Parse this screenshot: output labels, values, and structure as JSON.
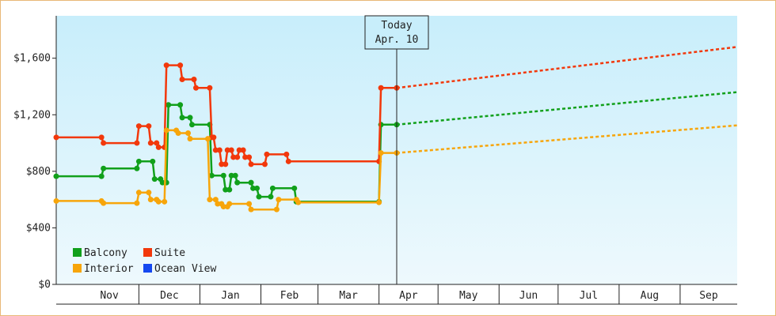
{
  "chart_data": {
    "type": "line",
    "title": "",
    "xlabel": "",
    "ylabel": "",
    "ylim": [
      0,
      1900
    ],
    "y_ticks": [
      {
        "value": 0,
        "label": "$0"
      },
      {
        "value": 400,
        "label": "$400"
      },
      {
        "value": 800,
        "label": "$800"
      },
      {
        "value": 1200,
        "label": "$1,200"
      },
      {
        "value": 1600,
        "label": "$1,600"
      }
    ],
    "x_range": [
      "2023-10-20",
      "2024-09-30"
    ],
    "month_ticks": [
      {
        "label": "Nov",
        "start": "2023-11-01",
        "end": "2023-12-01"
      },
      {
        "label": "Dec",
        "start": "2023-12-01",
        "end": "2024-01-01"
      },
      {
        "label": "Jan",
        "start": "2024-01-01",
        "end": "2024-02-01"
      },
      {
        "label": "Feb",
        "start": "2024-02-01",
        "end": "2024-03-01"
      },
      {
        "label": "Mar",
        "start": "2024-03-01",
        "end": "2024-04-01"
      },
      {
        "label": "Apr",
        "start": "2024-04-01",
        "end": "2024-05-01"
      },
      {
        "label": "May",
        "start": "2024-05-01",
        "end": "2024-06-01"
      },
      {
        "label": "Jun",
        "start": "2024-06-01",
        "end": "2024-07-01"
      },
      {
        "label": "Jul",
        "start": "2024-07-01",
        "end": "2024-08-01"
      },
      {
        "label": "Aug",
        "start": "2024-08-01",
        "end": "2024-09-01"
      },
      {
        "label": "Sep",
        "start": "2024-09-01",
        "end": "2024-09-30"
      }
    ],
    "today": {
      "line1": "Today",
      "line2": "Apr. 10",
      "date": "2024-04-10"
    },
    "legend_position": "bottom-left",
    "grid": false,
    "series": [
      {
        "name": "Balcony",
        "color": "#11a01b",
        "points": [
          [
            "2023-10-20",
            765
          ],
          [
            "2023-11-12",
            765
          ],
          [
            "2023-11-13",
            820
          ],
          [
            "2023-11-30",
            820
          ],
          [
            "2023-12-01",
            870
          ],
          [
            "2023-12-08",
            870
          ],
          [
            "2023-12-09",
            745
          ],
          [
            "2023-12-12",
            745
          ],
          [
            "2023-12-13",
            720
          ],
          [
            "2023-12-15",
            720
          ],
          [
            "2023-12-16",
            1270
          ],
          [
            "2023-12-22",
            1270
          ],
          [
            "2023-12-23",
            1180
          ],
          [
            "2023-12-27",
            1180
          ],
          [
            "2023-12-28",
            1130
          ],
          [
            "2024-01-06",
            1130
          ],
          [
            "2024-01-07",
            770
          ],
          [
            "2024-01-13",
            770
          ],
          [
            "2024-01-14",
            670
          ],
          [
            "2024-01-16",
            670
          ],
          [
            "2024-01-17",
            770
          ],
          [
            "2024-01-19",
            770
          ],
          [
            "2024-01-20",
            720
          ],
          [
            "2024-01-27",
            720
          ],
          [
            "2024-01-28",
            680
          ],
          [
            "2024-01-30",
            680
          ],
          [
            "2024-01-31",
            620
          ],
          [
            "2024-02-06",
            620
          ],
          [
            "2024-02-07",
            680
          ],
          [
            "2024-02-18",
            680
          ],
          [
            "2024-02-19",
            585
          ],
          [
            "2024-04-01",
            585
          ],
          [
            "2024-04-02",
            1130
          ],
          [
            "2024-04-10",
            1130
          ]
        ],
        "forecast": [
          [
            "2024-04-10",
            1130
          ],
          [
            "2024-09-30",
            1360
          ]
        ]
      },
      {
        "name": "Suite",
        "color": "#f2380b",
        "points": [
          [
            "2023-10-20",
            1040
          ],
          [
            "2023-11-12",
            1040
          ],
          [
            "2023-11-13",
            1000
          ],
          [
            "2023-11-30",
            1000
          ],
          [
            "2023-12-01",
            1120
          ],
          [
            "2023-12-06",
            1120
          ],
          [
            "2023-12-07",
            1000
          ],
          [
            "2023-12-10",
            1000
          ],
          [
            "2023-12-11",
            970
          ],
          [
            "2023-12-14",
            970
          ],
          [
            "2023-12-15",
            1550
          ],
          [
            "2023-12-22",
            1550
          ],
          [
            "2023-12-23",
            1450
          ],
          [
            "2023-12-29",
            1450
          ],
          [
            "2023-12-30",
            1390
          ],
          [
            "2024-01-06",
            1390
          ],
          [
            "2024-01-07",
            1040
          ],
          [
            "2024-01-08",
            1040
          ],
          [
            "2024-01-09",
            950
          ],
          [
            "2024-01-11",
            950
          ],
          [
            "2024-01-12",
            850
          ],
          [
            "2024-01-14",
            850
          ],
          [
            "2024-01-15",
            950
          ],
          [
            "2024-01-17",
            950
          ],
          [
            "2024-01-18",
            900
          ],
          [
            "2024-01-20",
            900
          ],
          [
            "2024-01-21",
            950
          ],
          [
            "2024-01-23",
            950
          ],
          [
            "2024-01-24",
            900
          ],
          [
            "2024-01-26",
            900
          ],
          [
            "2024-01-27",
            850
          ],
          [
            "2024-02-03",
            850
          ],
          [
            "2024-02-04",
            920
          ],
          [
            "2024-02-14",
            920
          ],
          [
            "2024-02-15",
            870
          ],
          [
            "2024-04-01",
            870
          ],
          [
            "2024-04-02",
            1390
          ],
          [
            "2024-04-10",
            1390
          ]
        ],
        "forecast": [
          [
            "2024-04-10",
            1390
          ],
          [
            "2024-09-30",
            1680
          ]
        ]
      },
      {
        "name": "Interior",
        "color": "#f7a50a",
        "points": [
          [
            "2023-10-20",
            590
          ],
          [
            "2023-11-12",
            590
          ],
          [
            "2023-11-13",
            575
          ],
          [
            "2023-11-30",
            575
          ],
          [
            "2023-12-01",
            650
          ],
          [
            "2023-12-06",
            650
          ],
          [
            "2023-12-07",
            600
          ],
          [
            "2023-12-10",
            600
          ],
          [
            "2023-12-11",
            585
          ],
          [
            "2023-12-14",
            585
          ],
          [
            "2023-12-15",
            1090
          ],
          [
            "2023-12-20",
            1090
          ],
          [
            "2023-12-21",
            1070
          ],
          [
            "2023-12-26",
            1070
          ],
          [
            "2023-12-27",
            1030
          ],
          [
            "2024-01-05",
            1030
          ],
          [
            "2024-01-06",
            600
          ],
          [
            "2024-01-09",
            600
          ],
          [
            "2024-01-10",
            570
          ],
          [
            "2024-01-12",
            570
          ],
          [
            "2024-01-13",
            550
          ],
          [
            "2024-01-15",
            550
          ],
          [
            "2024-01-16",
            570
          ],
          [
            "2024-01-26",
            570
          ],
          [
            "2024-01-27",
            530
          ],
          [
            "2024-02-09",
            530
          ],
          [
            "2024-02-10",
            600
          ],
          [
            "2024-02-19",
            600
          ],
          [
            "2024-02-20",
            580
          ],
          [
            "2024-04-01",
            580
          ],
          [
            "2024-04-02",
            930
          ],
          [
            "2024-04-10",
            930
          ]
        ],
        "forecast": [
          [
            "2024-04-10",
            930
          ],
          [
            "2024-09-30",
            1125
          ]
        ]
      },
      {
        "name": "Ocean View",
        "color": "#1448f0",
        "points": [],
        "forecast": []
      }
    ]
  }
}
